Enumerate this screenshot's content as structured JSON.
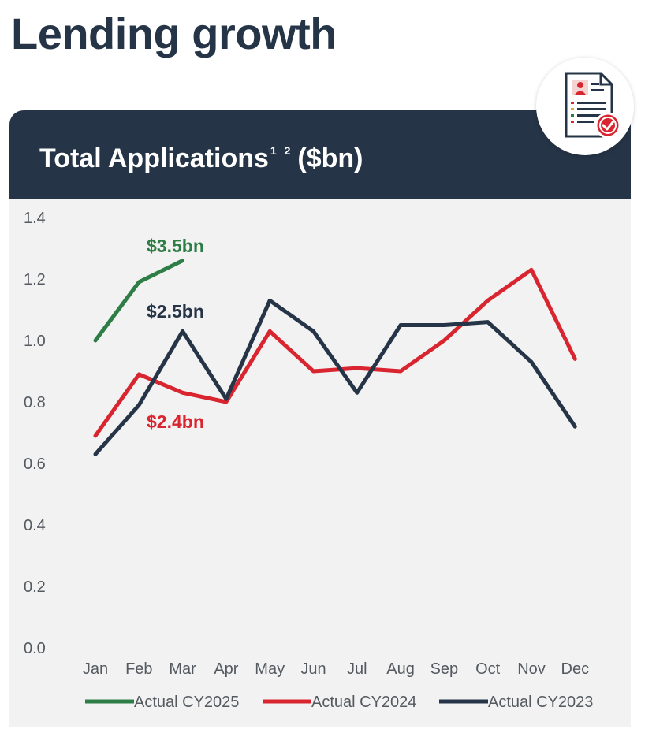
{
  "page": {
    "title": "Lending growth",
    "icon": "document-check-icon"
  },
  "chart_data": {
    "type": "line",
    "title": "Total Applications",
    "title_superscript": "1 2",
    "title_unit": "($bn)",
    "categories": [
      "Jan",
      "Feb",
      "Mar",
      "Apr",
      "May",
      "Jun",
      "Jul",
      "Aug",
      "Sep",
      "Oct",
      "Nov",
      "Dec"
    ],
    "yticks": [
      "0.0",
      "0.2",
      "0.4",
      "0.6",
      "0.8",
      "1.0",
      "1.2",
      "1.4"
    ],
    "ylim": [
      0,
      1.4
    ],
    "grid": false,
    "legend_position": "bottom",
    "series": [
      {
        "name": "Actual CY2025",
        "color": "#2e7d46",
        "values": [
          1.0,
          1.19,
          1.26,
          null,
          null,
          null,
          null,
          null,
          null,
          null,
          null,
          null
        ],
        "label": "$3.5bn"
      },
      {
        "name": "Actual CY2024",
        "color": "#d8252f",
        "values": [
          0.69,
          0.89,
          0.83,
          0.8,
          1.03,
          0.9,
          0.91,
          0.9,
          1.0,
          1.13,
          1.23,
          0.94
        ],
        "label": "$2.4bn"
      },
      {
        "name": "Actual CY2023",
        "color": "#253446",
        "values": [
          0.63,
          0.79,
          1.03,
          0.81,
          1.13,
          1.03,
          0.83,
          1.05,
          1.05,
          1.06,
          0.93,
          0.72
        ],
        "label": "$2.5bn"
      }
    ]
  }
}
